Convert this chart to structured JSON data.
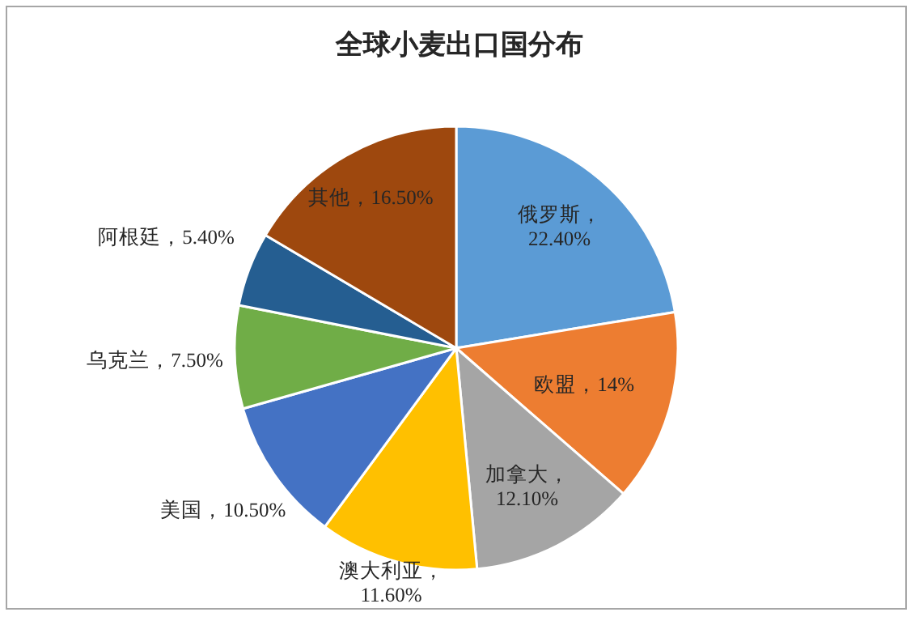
{
  "chart_data": {
    "type": "pie",
    "title": "全球小麦出口国分布",
    "categories": [
      "俄罗斯",
      "欧盟",
      "加拿大",
      "澳大利亚",
      "美国",
      "乌克兰",
      "阿根廷",
      "其他"
    ],
    "values": [
      22.4,
      14,
      12.1,
      11.6,
      10.5,
      7.5,
      5.4,
      16.5
    ],
    "colors": [
      "#5b9bd5",
      "#ed7d31",
      "#a5a5a5",
      "#ffc000",
      "#4472c4",
      "#70ad47",
      "#255e91",
      "#9e480e"
    ],
    "value_labels": [
      "，22.40%",
      "，14%",
      "，12.10%",
      "，11.60%",
      "，10.50%",
      "，7.50%",
      "，5.40%",
      "，16.50%"
    ]
  }
}
